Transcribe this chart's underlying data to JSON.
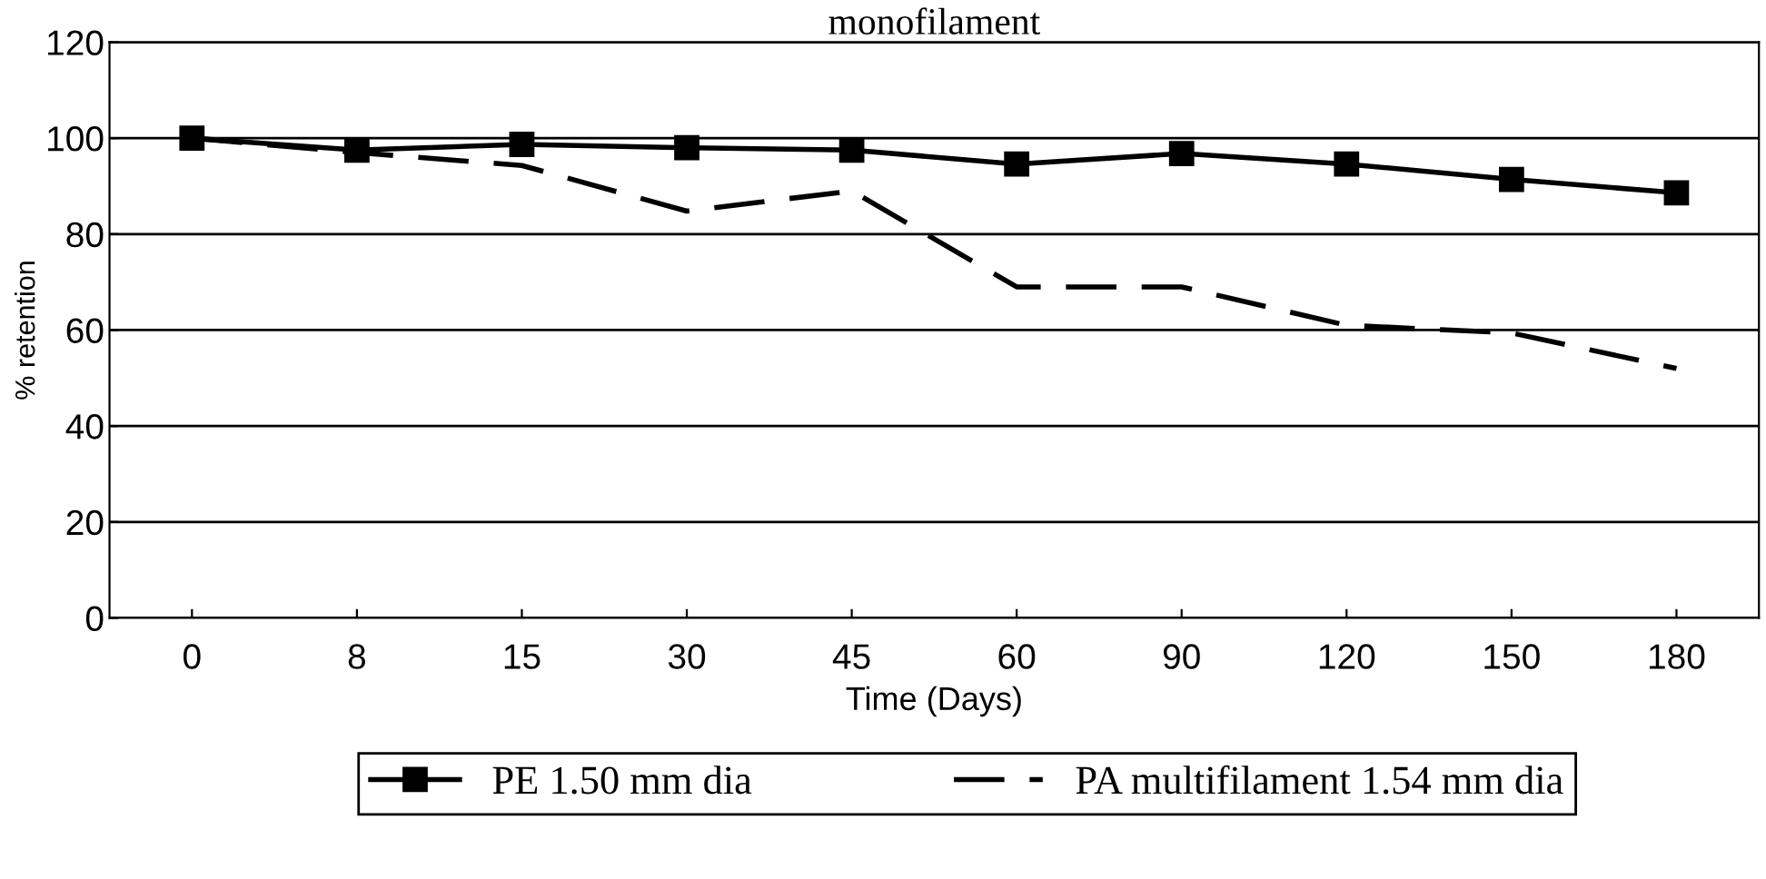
{
  "chart_data": {
    "type": "line",
    "title": "monofilament",
    "xlabel": "Time (Days)",
    "ylabel": "% retention",
    "categories": [
      "0",
      "8",
      "15",
      "30",
      "45",
      "60",
      "90",
      "120",
      "150",
      "180"
    ],
    "series": [
      {
        "name": "PE 1.50 mm dia",
        "color": "#000000",
        "marker": "square",
        "line_style": "solid",
        "values": [
          100,
          97.5,
          98.7,
          98,
          97.5,
          94.6,
          96.8,
          94.6,
          91.4,
          88.6
        ]
      },
      {
        "name": "PA multifilament 1.54 mm dia",
        "color": "#000000",
        "marker": "none",
        "line_style": "dashed",
        "values": [
          100,
          97,
          94.3,
          84.8,
          89,
          69,
          69,
          61,
          59.4,
          52
        ]
      }
    ],
    "ylim": [
      0,
      120
    ],
    "yticks": [
      0,
      20,
      40,
      60,
      80,
      100,
      120
    ],
    "grid": "y",
    "legend": "bottom"
  }
}
